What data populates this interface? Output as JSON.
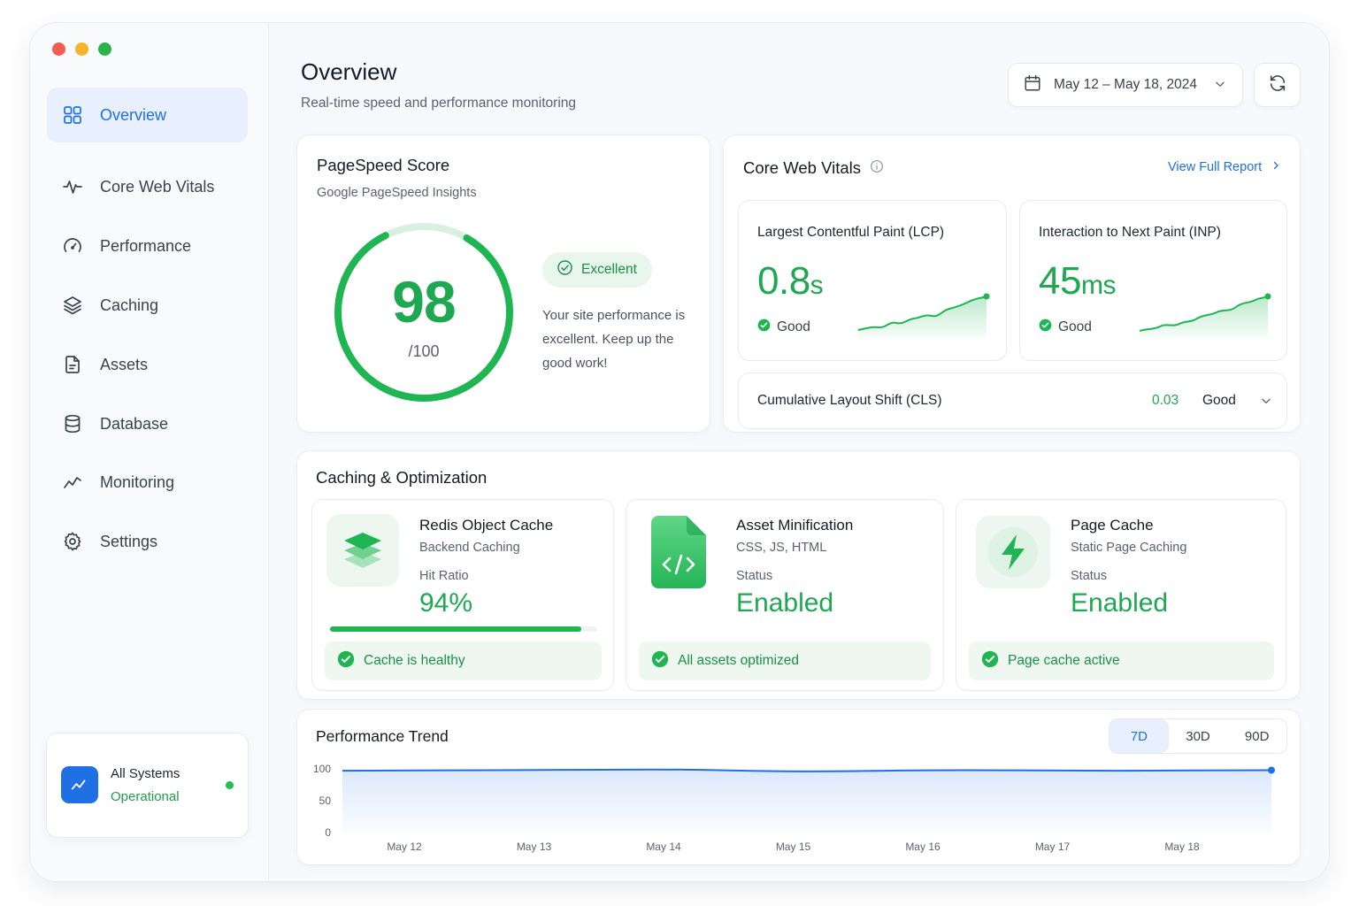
{
  "sidebar": {
    "items": [
      {
        "label": "Overview",
        "icon": "grid-icon",
        "active": true
      },
      {
        "label": "Core Web Vitals",
        "icon": "pulse-icon"
      },
      {
        "label": "Performance",
        "icon": "gauge-icon"
      },
      {
        "label": "Caching",
        "icon": "layers-icon"
      },
      {
        "label": "Assets",
        "icon": "file-icon"
      },
      {
        "label": "Database",
        "icon": "database-icon"
      },
      {
        "label": "Monitoring",
        "icon": "trend-icon"
      },
      {
        "label": "Settings",
        "icon": "gear-icon"
      }
    ],
    "status": {
      "line1": "All Systems",
      "line2": "Operational"
    }
  },
  "header": {
    "title": "Overview",
    "subtitle": "Real-time speed and performance monitoring",
    "date_range": "May 12 – May 18, 2024"
  },
  "pagespeed": {
    "title": "PageSpeed Score",
    "subtitle": "Google PageSpeed Insights",
    "score": "98",
    "max": "/100",
    "score_value": 98,
    "badge": "Excellent",
    "description": "Your site performance is excellent. Keep up the good work!"
  },
  "vitals": {
    "title": "Core Web Vitals",
    "link": "View Full Report",
    "lcp": {
      "label": "Largest Contentful Paint (LCP)",
      "value": "0.8",
      "unit": "s",
      "status": "Good"
    },
    "inp": {
      "label": "Interaction to Next Paint (INP)",
      "value": "45",
      "unit": "ms",
      "status": "Good"
    },
    "cls": {
      "label": "Cumulative Layout Shift (CLS)",
      "value": "0.03",
      "status": "Good"
    }
  },
  "caching": {
    "title": "Caching & Optimization",
    "redis": {
      "title": "Redis Object Cache",
      "sub": "Backend Caching",
      "label": "Hit Ratio",
      "value": "94%",
      "percent": 94,
      "ok": "Cache is healthy"
    },
    "minify": {
      "title": "Asset Minification",
      "sub": "CSS, JS, HTML",
      "label": "Status",
      "value": "Enabled",
      "ok": "All assets optimized"
    },
    "page": {
      "title": "Page Cache",
      "sub": "Static Page Caching",
      "label": "Status",
      "value": "Enabled",
      "ok": "Page cache active"
    }
  },
  "trend": {
    "title": "Performance Trend",
    "ranges": [
      "7D",
      "30D",
      "90D"
    ],
    "active_range": "7D"
  },
  "chart_data": {
    "type": "area",
    "categories": [
      "May 12",
      "May 13",
      "May 14",
      "May 15",
      "May 16",
      "May 17",
      "May 18"
    ],
    "y_ticks": [
      "100",
      "50",
      "0"
    ],
    "ylim": [
      0,
      100
    ],
    "series": [
      {
        "values": [
          97,
          98,
          99,
          96,
          98,
          97,
          98
        ]
      }
    ],
    "grid": false
  },
  "colors": {
    "accent": "#1f6fe5",
    "good": "#1ea851"
  }
}
